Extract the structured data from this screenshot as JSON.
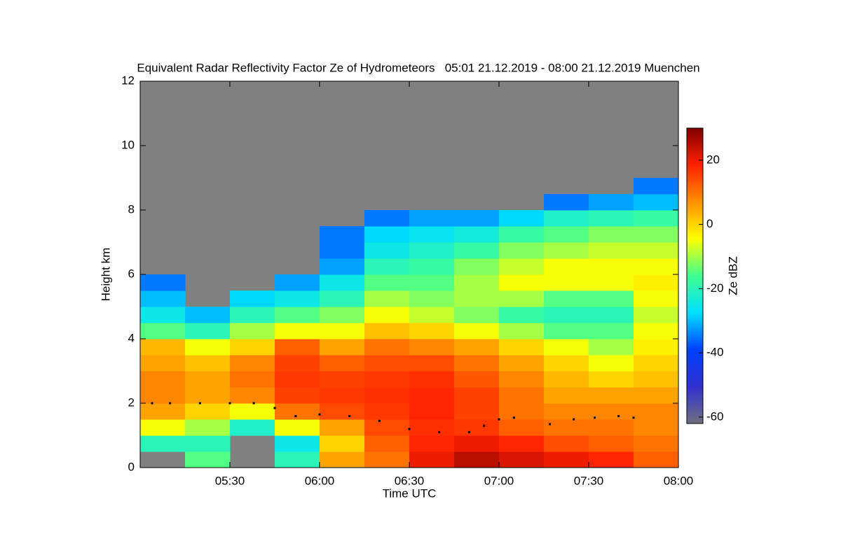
{
  "chart_data": {
    "type": "heatmap",
    "title": "Equivalent Radar Reflectivity Factor Ze of Hydrometeors   05:01 21.12.2019 - 08:00 21.12.2019 Muenchen",
    "x_label": "Time UTC",
    "y_label": "Height km",
    "colorbar_label": "Ze dBZ",
    "x_bins": [
      300,
      315,
      330,
      345,
      360,
      375,
      390,
      405,
      420,
      435,
      450,
      465,
      480
    ],
    "y_bins": [
      0,
      0.5,
      1,
      1.5,
      2,
      2.5,
      3,
      3.5,
      4,
      4.5,
      5,
      5.5,
      6,
      6.5,
      7,
      7.5,
      8,
      8.5,
      9
    ],
    "z": [
      [
        null,
        -15,
        null,
        -20,
        5,
        10,
        20,
        25,
        22,
        20,
        18,
        12
      ],
      [
        -20,
        -20,
        null,
        -25,
        0,
        12,
        18,
        20,
        18,
        14,
        12,
        10
      ],
      [
        -5,
        -10,
        -22,
        -5,
        5,
        14,
        17,
        16,
        12,
        10,
        10,
        8
      ],
      [
        5,
        0,
        -5,
        10,
        14,
        16,
        18,
        15,
        10,
        8,
        8,
        8
      ],
      [
        8,
        5,
        8,
        15,
        16,
        17,
        18,
        15,
        10,
        5,
        5,
        5
      ],
      [
        8,
        5,
        10,
        16,
        15,
        16,
        17,
        13,
        8,
        3,
        0,
        2
      ],
      [
        5,
        2,
        8,
        15,
        12,
        14,
        14,
        10,
        5,
        0,
        -5,
        0
      ],
      [
        3,
        -5,
        0,
        12,
        5,
        10,
        8,
        5,
        0,
        -5,
        -10,
        -3
      ],
      [
        -15,
        -20,
        -10,
        -5,
        -5,
        2,
        0,
        -5,
        -10,
        -15,
        -15,
        -5
      ],
      [
        -25,
        -30,
        -20,
        -15,
        -12,
        -5,
        -8,
        -12,
        -18,
        -20,
        -20,
        -8
      ],
      [
        -30,
        null,
        -28,
        -25,
        -20,
        -10,
        -12,
        -10,
        -10,
        -15,
        -15,
        -5
      ],
      [
        -35,
        null,
        null,
        -32,
        -25,
        -15,
        -15,
        -10,
        -5,
        -5,
        -5,
        -3
      ],
      [
        null,
        null,
        null,
        null,
        -32,
        -20,
        -18,
        -12,
        -8,
        -5,
        -5,
        -5
      ],
      [
        null,
        null,
        null,
        null,
        -35,
        -25,
        -22,
        -18,
        -12,
        -10,
        -8,
        -8
      ],
      [
        null,
        null,
        null,
        null,
        -35,
        -28,
        -26,
        -24,
        -18,
        -15,
        -12,
        -12
      ],
      [
        null,
        null,
        null,
        null,
        null,
        -35,
        -32,
        -32,
        -28,
        -22,
        -20,
        -18
      ],
      [
        null,
        null,
        null,
        null,
        null,
        null,
        null,
        null,
        null,
        -35,
        -32,
        -30
      ],
      [
        null,
        null,
        null,
        null,
        null,
        null,
        null,
        null,
        null,
        null,
        null,
        -35
      ]
    ],
    "no_echo_color": "#808080",
    "colormap": [
      "#707080",
      "#3030d0",
      "#0040ff",
      "#00e0ff",
      "#40ff90",
      "#ffff00",
      "#ff9000",
      "#ff2000",
      "#800000"
    ],
    "zlim": [
      -62,
      30
    ],
    "zticks": [
      -60,
      -40,
      -20,
      0,
      20
    ],
    "series": [
      {
        "color": "#000000",
        "x": [
          304,
          310,
          320,
          330,
          338,
          345,
          352,
          360,
          370,
          380,
          390,
          400,
          410,
          415,
          420,
          425,
          437,
          445,
          452,
          460,
          465
        ],
        "y": [
          2.0,
          2.0,
          2.0,
          2.0,
          2.0,
          1.85,
          1.6,
          1.65,
          1.6,
          1.45,
          1.2,
          1.1,
          1.1,
          1.3,
          1.5,
          1.55,
          1.35,
          1.5,
          1.55,
          1.6,
          1.55
        ]
      }
    ],
    "xlim": [
      300,
      480
    ],
    "xticks": [
      {
        "value": 330,
        "label": "05:30"
      },
      {
        "value": 360,
        "label": "06:00"
      },
      {
        "value": 390,
        "label": "06:30"
      },
      {
        "value": 420,
        "label": "07:00"
      },
      {
        "value": 450,
        "label": "07:30"
      },
      {
        "value": 480,
        "label": "08:00"
      }
    ],
    "ylim": [
      0,
      12
    ],
    "yticks": [
      0,
      2,
      4,
      6,
      8,
      10,
      12
    ]
  }
}
